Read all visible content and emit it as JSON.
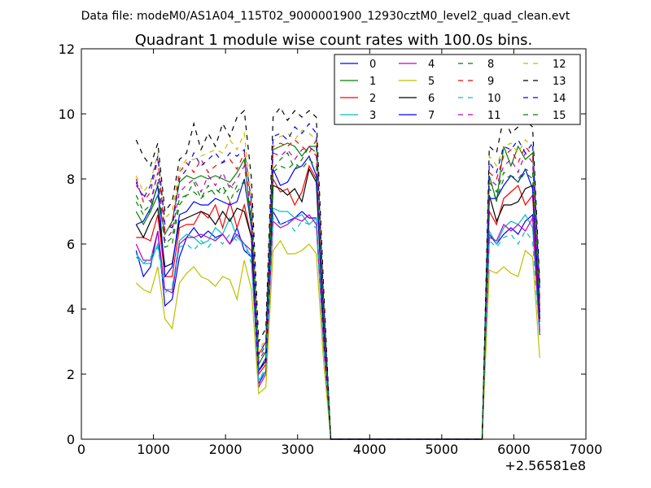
{
  "chart_data": {
    "type": "line",
    "suptitle": "Data file: modeM0/AS1A04_115T02_9000001900_12930cztM0_level2_quad_clean.evt",
    "title": "Quadrant 1 module wise count rates with 100.0s bins.",
    "xlabel": "",
    "ylabel": "",
    "x_offset_label": "+2.56581e8",
    "xlim": [
      0,
      7000
    ],
    "ylim": [
      0,
      12
    ],
    "xticks": [
      0,
      1000,
      2000,
      3000,
      4000,
      5000,
      6000,
      7000
    ],
    "yticks": [
      0,
      2,
      4,
      6,
      8,
      10,
      12
    ],
    "xtick_labels": [
      "0",
      "1000",
      "2000",
      "3000",
      "4000",
      "5000",
      "6000",
      "7000"
    ],
    "ytick_labels": [
      "0",
      "2",
      "4",
      "6",
      "8",
      "10",
      "12"
    ],
    "grid": false,
    "legend_position": "top-right",
    "legend_ncol": 4,
    "x": [
      760,
      860,
      960,
      1060,
      1160,
      1260,
      1360,
      1460,
      1560,
      1660,
      1760,
      1860,
      1960,
      2060,
      2160,
      2260,
      2360,
      2460,
      2560,
      2660,
      2760,
      2860,
      2960,
      3060,
      3160,
      3260,
      3360,
      3460,
      3560,
      4000,
      5000,
      5560,
      5660,
      5760,
      5860,
      5960,
      6060,
      6160,
      6260,
      6360
    ],
    "series": [
      {
        "name": "0",
        "color": "#0000ff",
        "dash": "solid",
        "values": [
          5.8,
          5.0,
          5.3,
          6.4,
          4.1,
          4.3,
          5.6,
          6.2,
          6.5,
          6.2,
          6.4,
          6.2,
          6.3,
          6.0,
          6.5,
          5.8,
          5.6,
          1.7,
          2.1,
          7.0,
          6.6,
          6.7,
          6.8,
          7.0,
          6.8,
          6.8,
          3.0,
          0,
          0,
          0,
          0,
          0,
          6.3,
          6.0,
          6.3,
          6.5,
          6.3,
          6.7,
          6.9,
          3.3
        ]
      },
      {
        "name": "1",
        "color": "#008000",
        "dash": "solid",
        "values": [
          7.0,
          6.6,
          7.0,
          7.5,
          6.3,
          6.7,
          7.9,
          8.1,
          8.0,
          8.1,
          8.0,
          8.1,
          8.0,
          7.9,
          8.2,
          8.6,
          6.6,
          2.3,
          2.7,
          8.9,
          9.0,
          9.1,
          9.0,
          8.7,
          9.0,
          9.0,
          4.2,
          0,
          0,
          0,
          0,
          0,
          8.1,
          7.3,
          9.0,
          8.4,
          9.0,
          8.6,
          8.8,
          4.1
        ]
      },
      {
        "name": "2",
        "color": "#ff0000",
        "dash": "solid",
        "values": [
          6.2,
          6.2,
          6.1,
          6.9,
          5.0,
          5.0,
          6.5,
          6.6,
          6.6,
          7.0,
          6.8,
          7.2,
          6.5,
          7.3,
          6.5,
          7.2,
          6.2,
          2.0,
          2.3,
          8.0,
          7.6,
          7.7,
          7.2,
          7.6,
          8.4,
          8.0,
          3.6,
          0,
          0,
          0,
          0,
          0,
          7.0,
          6.6,
          7.4,
          7.6,
          7.8,
          7.2,
          7.5,
          3.6
        ]
      },
      {
        "name": "3",
        "color": "#00bfbf",
        "dash": "solid",
        "values": [
          5.7,
          5.4,
          5.4,
          6.0,
          4.6,
          4.6,
          6.1,
          6.3,
          6.2,
          6.0,
          6.1,
          6.5,
          6.3,
          6.8,
          6.2,
          6.0,
          5.6,
          1.8,
          2.1,
          7.1,
          7.0,
          7.0,
          6.8,
          6.9,
          6.6,
          6.8,
          3.1,
          0,
          0,
          0,
          0,
          0,
          6.4,
          6.0,
          6.5,
          6.7,
          6.6,
          6.9,
          6.5,
          3.2
        ]
      },
      {
        "name": "4",
        "color": "#bf00bf",
        "dash": "solid",
        "values": [
          6.0,
          5.5,
          5.5,
          6.4,
          4.6,
          4.5,
          6.0,
          6.2,
          6.2,
          6.3,
          6.2,
          6.1,
          6.3,
          6.0,
          6.3,
          6.0,
          5.8,
          1.6,
          2.0,
          6.7,
          6.5,
          6.6,
          6.8,
          6.7,
          6.9,
          6.6,
          2.9,
          0,
          0,
          0,
          0,
          0,
          6.2,
          6.1,
          6.6,
          6.4,
          6.6,
          6.4,
          6.8,
          3.2
        ]
      },
      {
        "name": "5",
        "color": "#bfbf00",
        "dash": "solid",
        "values": [
          4.8,
          4.6,
          4.5,
          5.3,
          3.7,
          3.4,
          4.8,
          5.1,
          5.3,
          5.0,
          4.9,
          4.7,
          5.0,
          4.9,
          4.3,
          5.5,
          4.6,
          1.4,
          1.6,
          5.8,
          6.1,
          5.7,
          5.7,
          5.8,
          6.0,
          5.7,
          2.4,
          0,
          0,
          0,
          0,
          0,
          5.2,
          5.1,
          5.3,
          5.1,
          5.0,
          5.8,
          5.6,
          2.5
        ]
      },
      {
        "name": "6",
        "color": "#000000",
        "dash": "solid",
        "values": [
          6.6,
          6.2,
          6.7,
          7.1,
          5.3,
          5.4,
          6.7,
          6.8,
          6.9,
          7.0,
          6.9,
          6.6,
          7.0,
          6.7,
          7.1,
          7.0,
          6.2,
          2.1,
          2.4,
          7.8,
          7.7,
          7.5,
          7.7,
          7.3,
          8.3,
          7.9,
          3.4,
          0,
          0,
          0,
          0,
          0,
          7.5,
          6.7,
          7.2,
          7.2,
          7.3,
          7.7,
          7.8,
          3.7
        ]
      },
      {
        "name": "7",
        "color": "#0000ff",
        "dash": "solid",
        "values": [
          6.6,
          6.7,
          7.1,
          7.8,
          5.0,
          5.3,
          6.9,
          7.0,
          7.3,
          7.2,
          7.2,
          7.4,
          7.3,
          7.2,
          7.3,
          8.0,
          6.5,
          2.1,
          2.5,
          8.3,
          7.8,
          7.9,
          8.3,
          8.4,
          8.7,
          8.1,
          3.7,
          0,
          0,
          0,
          0,
          0,
          7.4,
          7.4,
          7.8,
          8.1,
          7.9,
          8.3,
          7.7,
          3.9
        ]
      },
      {
        "name": "8",
        "color": "#008000",
        "dash": "dashed",
        "values": [
          7.5,
          7.0,
          7.2,
          8.2,
          6.0,
          6.2,
          7.4,
          7.5,
          7.9,
          7.4,
          7.8,
          7.5,
          7.8,
          7.3,
          7.8,
          7.9,
          6.8,
          2.5,
          2.9,
          8.3,
          8.6,
          8.8,
          8.3,
          8.6,
          9.0,
          8.8,
          4.0,
          0,
          0,
          0,
          0,
          0,
          7.9,
          7.6,
          8.2,
          8.1,
          8.0,
          8.3,
          8.2,
          4.3
        ]
      },
      {
        "name": "9",
        "color": "#ff0000",
        "dash": "dashed",
        "values": [
          8.0,
          7.3,
          7.6,
          8.6,
          6.4,
          6.6,
          8.2,
          8.5,
          8.2,
          8.6,
          8.2,
          8.4,
          8.5,
          8.6,
          8.3,
          8.8,
          7.1,
          2.6,
          3.0,
          9.0,
          9.1,
          9.0,
          9.2,
          9.0,
          8.8,
          9.2,
          4.2,
          0,
          0,
          0,
          0,
          0,
          8.2,
          8.0,
          8.7,
          8.9,
          8.5,
          9.0,
          8.7,
          4.4
        ]
      },
      {
        "name": "10",
        "color": "#00bfbf",
        "dash": "dashed",
        "values": [
          5.6,
          5.4,
          5.6,
          5.9,
          4.5,
          4.7,
          5.9,
          6.0,
          5.8,
          6.1,
          5.9,
          6.2,
          6.0,
          6.3,
          6.1,
          6.0,
          5.4,
          1.8,
          2.2,
          6.8,
          6.6,
          6.7,
          6.4,
          6.7,
          6.6,
          6.5,
          3.0,
          0,
          0,
          0,
          0,
          0,
          6.1,
          5.9,
          6.2,
          6.3,
          6.0,
          6.4,
          6.1,
          3.1
        ]
      },
      {
        "name": "11",
        "color": "#bf00bf",
        "dash": "dashed",
        "values": [
          7.8,
          7.5,
          7.3,
          8.2,
          6.1,
          6.4,
          7.6,
          7.8,
          8.0,
          7.6,
          8.1,
          7.8,
          8.2,
          7.7,
          8.0,
          8.4,
          6.9,
          2.4,
          2.8,
          8.8,
          8.7,
          8.9,
          8.6,
          8.9,
          9.0,
          8.7,
          3.9,
          0,
          0,
          0,
          0,
          0,
          8.0,
          7.8,
          8.4,
          8.6,
          8.2,
          8.8,
          8.5,
          4.3
        ]
      },
      {
        "name": "12",
        "color": "#bfbf00",
        "dash": "dashed",
        "values": [
          8.1,
          7.6,
          7.9,
          8.8,
          6.8,
          7.0,
          8.3,
          8.6,
          8.6,
          8.7,
          8.8,
          8.9,
          8.8,
          9.2,
          8.9,
          9.4,
          7.4,
          2.7,
          3.1,
          9.2,
          9.3,
          9.4,
          9.2,
          9.5,
          9.4,
          9.2,
          4.4,
          0,
          0,
          0,
          0,
          0,
          8.7,
          8.4,
          9.0,
          9.1,
          8.8,
          9.2,
          9.0,
          4.5
        ]
      },
      {
        "name": "13",
        "color": "#000000",
        "dash": "dashed",
        "values": [
          9.2,
          8.7,
          8.4,
          9.1,
          7.0,
          7.3,
          8.6,
          8.8,
          9.7,
          8.9,
          9.4,
          9.0,
          9.7,
          9.3,
          9.9,
          10.1,
          8.0,
          3.0,
          3.4,
          9.9,
          10.2,
          9.8,
          10.1,
          9.9,
          10.1,
          9.9,
          4.7,
          0,
          0,
          0,
          0,
          0,
          9.0,
          8.8,
          9.9,
          9.4,
          9.6,
          9.8,
          9.6,
          4.8
        ]
      },
      {
        "name": "14",
        "color": "#0000ff",
        "dash": "dashed",
        "values": [
          7.9,
          7.4,
          7.8,
          8.7,
          6.6,
          6.5,
          8.0,
          8.3,
          8.8,
          8.4,
          8.6,
          8.8,
          8.5,
          8.8,
          8.7,
          8.9,
          7.3,
          2.6,
          3.0,
          9.3,
          9.4,
          9.2,
          9.6,
          9.4,
          9.7,
          9.4,
          4.3,
          0,
          0,
          0,
          0,
          0,
          8.5,
          8.2,
          9.0,
          8.9,
          9.2,
          8.8,
          9.1,
          4.6
        ]
      },
      {
        "name": "15",
        "color": "#008000",
        "dash": "dashed",
        "values": [
          7.3,
          6.9,
          7.0,
          7.9,
          5.9,
          6.0,
          7.2,
          7.5,
          7.6,
          7.4,
          7.6,
          7.7,
          7.5,
          7.8,
          7.6,
          7.9,
          6.6,
          2.3,
          2.7,
          8.2,
          8.4,
          8.3,
          8.5,
          8.3,
          8.6,
          8.4,
          3.8,
          0,
          0,
          0,
          0,
          0,
          7.7,
          7.4,
          8.0,
          8.1,
          7.9,
          8.2,
          8.0,
          4.0
        ]
      }
    ]
  }
}
